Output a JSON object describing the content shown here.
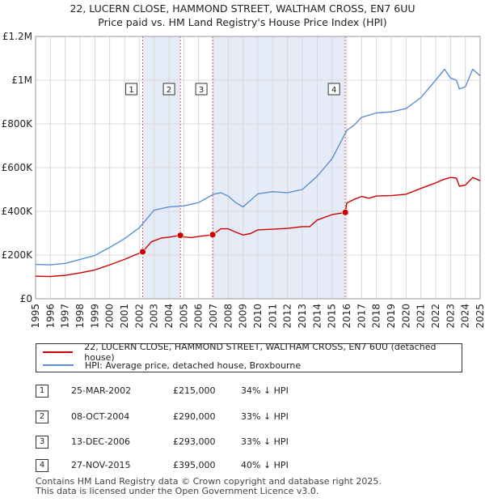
{
  "title_line1": "22, LUCERN CLOSE, HAMMOND STREET, WALTHAM CROSS, EN7 6UU",
  "title_line2": "Price paid vs. HM Land Registry's House Price Index (HPI)",
  "legend": {
    "property": "22, LUCERN CLOSE, HAMMOND STREET, WALTHAM CROSS, EN7 6UU (detached house)",
    "hpi": "HPI: Average price, detached house, Broxbourne"
  },
  "colors": {
    "property": "#cc0000",
    "hpi": "#5b8fd0",
    "band": "#e6ecf7",
    "grid": "#d8d8d8"
  },
  "sales": [
    {
      "num": "1",
      "date": "25-MAR-2002",
      "price": "£215,000",
      "hpi": "34% ↓ HPI"
    },
    {
      "num": "2",
      "date": "08-OCT-2004",
      "price": "£290,000",
      "hpi": "33% ↓ HPI"
    },
    {
      "num": "3",
      "date": "13-DEC-2006",
      "price": "£293,000",
      "hpi": "33% ↓ HPI"
    },
    {
      "num": "4",
      "date": "27-NOV-2015",
      "price": "£395,000",
      "hpi": "40% ↓ HPI"
    }
  ],
  "footer_line1": "Contains HM Land Registry data © Crown copyright and database right 2025.",
  "footer_line2": "This data is licensed under the Open Government Licence v3.0.",
  "chart_data": {
    "type": "line",
    "title": "22, LUCERN CLOSE, HAMMOND STREET, WALTHAM CROSS, EN7 6UU",
    "subtitle": "Price paid vs. HM Land Registry's House Price Index (HPI)",
    "xlim": [
      1995,
      2025
    ],
    "ylim": [
      0,
      1200000
    ],
    "x_ticks": [
      1995,
      1996,
      1997,
      1998,
      1999,
      2000,
      2001,
      2002,
      2003,
      2004,
      2005,
      2006,
      2007,
      2008,
      2009,
      2010,
      2011,
      2012,
      2013,
      2014,
      2015,
      2016,
      2017,
      2018,
      2019,
      2020,
      2021,
      2022,
      2023,
      2024,
      2025
    ],
    "y_ticks": [
      0,
      200000,
      400000,
      600000,
      800000,
      1000000,
      1200000
    ],
    "y_tick_labels": [
      "£0",
      "£200K",
      "£400K",
      "£600K",
      "£800K",
      "£1M",
      "£1.2M"
    ],
    "grid": true,
    "shaded_bands": [
      [
        2002.23,
        2004.77
      ],
      [
        2006.95,
        2015.9
      ]
    ],
    "sale_markers": [
      {
        "label": "1",
        "x": 2002.23,
        "y": 215000
      },
      {
        "label": "2",
        "x": 2004.77,
        "y": 290000
      },
      {
        "label": "3",
        "x": 2006.95,
        "y": 293000
      },
      {
        "label": "4",
        "x": 2015.9,
        "y": 395000
      }
    ],
    "series": [
      {
        "name": "22, LUCERN CLOSE, HAMMOND STREET, WALTHAM CROSS, EN7 6UU (detached house)",
        "color": "#cc0000",
        "points": [
          [
            1995,
            103000
          ],
          [
            1996,
            102000
          ],
          [
            1997,
            107000
          ],
          [
            1998,
            118000
          ],
          [
            1999,
            132000
          ],
          [
            2000,
            155000
          ],
          [
            2001,
            180000
          ],
          [
            2002.23,
            215000
          ],
          [
            2002.8,
            260000
          ],
          [
            2003.5,
            278000
          ],
          [
            2004,
            282000
          ],
          [
            2004.77,
            290000
          ],
          [
            2005,
            283000
          ],
          [
            2005.5,
            280000
          ],
          [
            2006,
            285000
          ],
          [
            2006.95,
            293000
          ],
          [
            2007.5,
            320000
          ],
          [
            2008,
            320000
          ],
          [
            2008.5,
            305000
          ],
          [
            2009,
            292000
          ],
          [
            2009.5,
            298000
          ],
          [
            2010,
            315000
          ],
          [
            2011,
            318000
          ],
          [
            2012,
            322000
          ],
          [
            2013,
            330000
          ],
          [
            2013.5,
            330000
          ],
          [
            2014,
            360000
          ],
          [
            2015,
            385000
          ],
          [
            2015.9,
            395000
          ],
          [
            2016,
            438000
          ],
          [
            2016.5,
            455000
          ],
          [
            2017,
            468000
          ],
          [
            2017.5,
            460000
          ],
          [
            2018,
            470000
          ],
          [
            2019,
            472000
          ],
          [
            2020,
            478000
          ],
          [
            2021,
            505000
          ],
          [
            2022,
            530000
          ],
          [
            2022.5,
            545000
          ],
          [
            2023,
            555000
          ],
          [
            2023.4,
            552000
          ],
          [
            2023.6,
            515000
          ],
          [
            2024,
            520000
          ],
          [
            2024.5,
            555000
          ],
          [
            2025,
            540000
          ]
        ]
      },
      {
        "name": "HPI: Average price, detached house, Broxbourne",
        "color": "#5b8fd0",
        "points": [
          [
            1995,
            157000
          ],
          [
            1996,
            155000
          ],
          [
            1997,
            162000
          ],
          [
            1998,
            180000
          ],
          [
            1999,
            198000
          ],
          [
            2000,
            235000
          ],
          [
            2001,
            275000
          ],
          [
            2002,
            325000
          ],
          [
            2003,
            405000
          ],
          [
            2004,
            420000
          ],
          [
            2005,
            425000
          ],
          [
            2006,
            440000
          ],
          [
            2007,
            478000
          ],
          [
            2007.5,
            485000
          ],
          [
            2008,
            470000
          ],
          [
            2008.5,
            440000
          ],
          [
            2009,
            420000
          ],
          [
            2009.5,
            450000
          ],
          [
            2010,
            480000
          ],
          [
            2011,
            490000
          ],
          [
            2012,
            485000
          ],
          [
            2013,
            500000
          ],
          [
            2014,
            560000
          ],
          [
            2015,
            640000
          ],
          [
            2016,
            770000
          ],
          [
            2016.5,
            795000
          ],
          [
            2017,
            830000
          ],
          [
            2018,
            850000
          ],
          [
            2019,
            855000
          ],
          [
            2020,
            870000
          ],
          [
            2021,
            920000
          ],
          [
            2022,
            1000000
          ],
          [
            2022.6,
            1050000
          ],
          [
            2023,
            1010000
          ],
          [
            2023.4,
            1000000
          ],
          [
            2023.6,
            960000
          ],
          [
            2024,
            970000
          ],
          [
            2024.5,
            1050000
          ],
          [
            2025,
            1020000
          ]
        ]
      }
    ]
  }
}
